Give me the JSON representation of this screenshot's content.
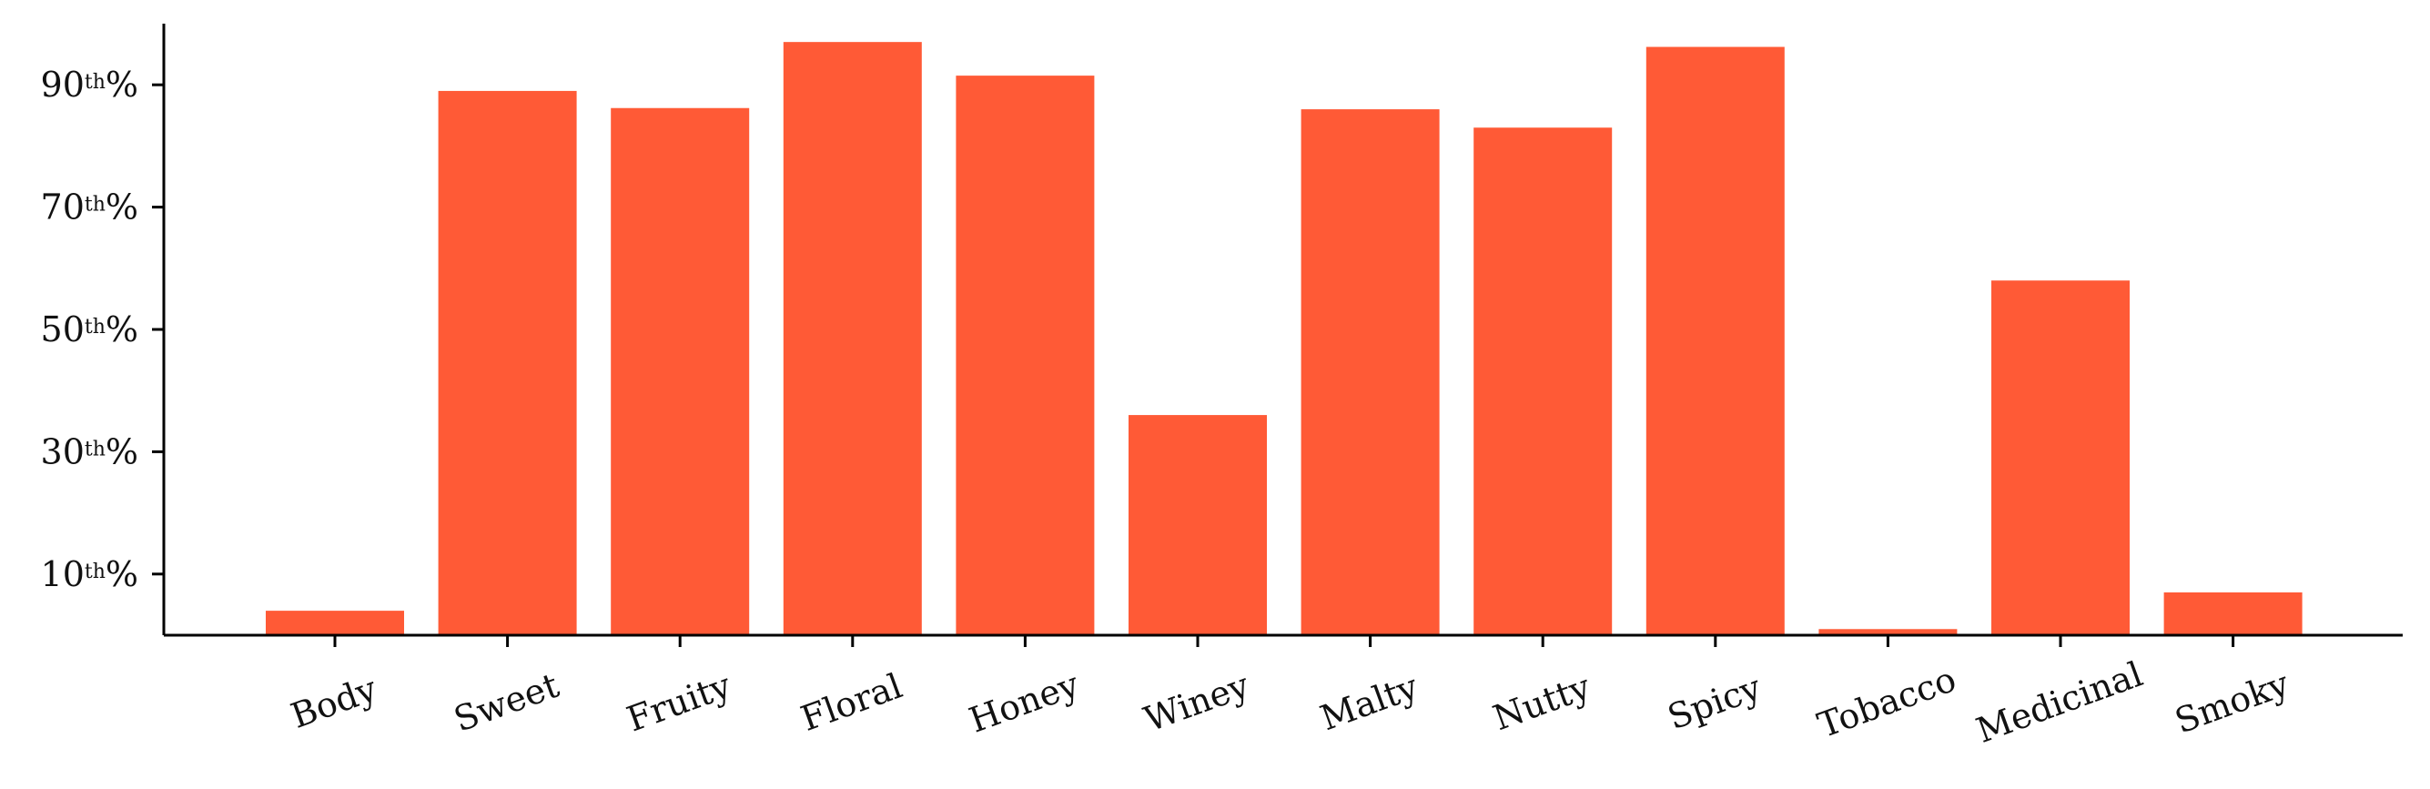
{
  "chart_data": {
    "type": "bar",
    "title": "",
    "xlabel": "",
    "ylabel": "",
    "categories": [
      "Body",
      "Sweet",
      "Fruity",
      "Floral",
      "Honey",
      "Winey",
      "Malty",
      "Nutty",
      "Spicy",
      "Tobacco",
      "Medicinal",
      "Smoky"
    ],
    "values": [
      4,
      89,
      86.2,
      97,
      91.5,
      36,
      86,
      83,
      96.2,
      1,
      58,
      7
    ],
    "ylim": [
      0,
      100
    ],
    "yticks": [
      {
        "value": 10,
        "num": "10",
        "sup": "th",
        "suffix": "%"
      },
      {
        "value": 30,
        "num": "30",
        "sup": "th",
        "suffix": "%"
      },
      {
        "value": 50,
        "num": "50",
        "sup": "th",
        "suffix": "%"
      },
      {
        "value": 70,
        "num": "70",
        "sup": "th",
        "suffix": "%"
      },
      {
        "value": 90,
        "num": "90",
        "sup": "th",
        "suffix": "%"
      }
    ],
    "bar_color": "#ff5a36",
    "grid": false,
    "legend": "none"
  }
}
